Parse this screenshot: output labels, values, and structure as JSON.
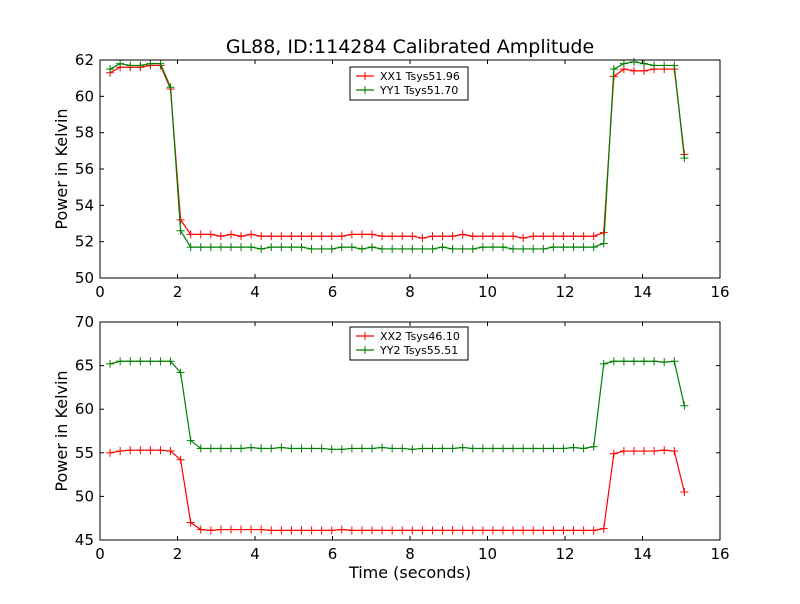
{
  "title": "GL88, ID:114284 Calibrated Amplitude",
  "colors": {
    "red": "#ff0000",
    "green": "#008000"
  },
  "chart_data": [
    {
      "type": "line",
      "xlabel": "",
      "ylabel": "Power in Kelvin",
      "xlim": [
        0,
        16
      ],
      "ylim": [
        50,
        62
      ],
      "xticks": [
        0,
        2,
        4,
        6,
        8,
        10,
        12,
        14,
        16
      ],
      "yticks": [
        50,
        52,
        54,
        56,
        58,
        60,
        62
      ],
      "grid": false,
      "legend_position": "top-center",
      "x": [
        0.26,
        0.52,
        0.78,
        1.04,
        1.3,
        1.56,
        1.82,
        2.08,
        2.34,
        2.6,
        2.86,
        3.12,
        3.38,
        3.64,
        3.9,
        4.16,
        4.42,
        4.68,
        4.94,
        5.2,
        5.46,
        5.72,
        5.98,
        6.24,
        6.5,
        6.76,
        7.02,
        7.28,
        7.54,
        7.8,
        8.06,
        8.32,
        8.58,
        8.84,
        9.1,
        9.36,
        9.62,
        9.88,
        10.14,
        10.4,
        10.66,
        10.92,
        11.18,
        11.44,
        11.7,
        11.96,
        12.22,
        12.48,
        12.74,
        13.0,
        13.26,
        13.52,
        13.78,
        14.04,
        14.3,
        14.56,
        14.82,
        15.08
      ],
      "series": [
        {
          "name": "XX1 Tsys51.96",
          "color": "#ff0000",
          "values": [
            61.3,
            61.6,
            61.6,
            61.6,
            61.7,
            61.7,
            60.4,
            53.2,
            52.4,
            52.4,
            52.4,
            52.3,
            52.4,
            52.3,
            52.4,
            52.3,
            52.3,
            52.3,
            52.3,
            52.3,
            52.3,
            52.3,
            52.3,
            52.3,
            52.4,
            52.4,
            52.4,
            52.3,
            52.3,
            52.3,
            52.3,
            52.2,
            52.3,
            52.3,
            52.3,
            52.4,
            52.3,
            52.3,
            52.3,
            52.3,
            52.3,
            52.2,
            52.3,
            52.3,
            52.3,
            52.3,
            52.3,
            52.3,
            52.3,
            52.5,
            61.1,
            61.5,
            61.4,
            61.4,
            61.5,
            61.5,
            61.5,
            56.8
          ]
        },
        {
          "name": "YY1 Tsys51.70",
          "color": "#008000",
          "values": [
            61.5,
            61.8,
            61.7,
            61.7,
            61.8,
            61.8,
            60.5,
            52.6,
            51.7,
            51.7,
            51.7,
            51.7,
            51.7,
            51.7,
            51.7,
            51.6,
            51.7,
            51.7,
            51.7,
            51.7,
            51.6,
            51.6,
            51.6,
            51.7,
            51.7,
            51.6,
            51.7,
            51.6,
            51.6,
            51.6,
            51.6,
            51.6,
            51.6,
            51.7,
            51.6,
            51.6,
            51.6,
            51.7,
            51.7,
            51.7,
            51.6,
            51.6,
            51.6,
            51.6,
            51.7,
            51.7,
            51.7,
            51.7,
            51.7,
            51.9,
            61.5,
            61.8,
            61.9,
            61.8,
            61.7,
            61.7,
            61.7,
            56.6
          ]
        }
      ]
    },
    {
      "type": "line",
      "xlabel": "Time (seconds)",
      "ylabel": "Power in Kelvin",
      "xlim": [
        0,
        16
      ],
      "ylim": [
        45,
        70
      ],
      "xticks": [
        0,
        2,
        4,
        6,
        8,
        10,
        12,
        14,
        16
      ],
      "yticks": [
        45,
        50,
        55,
        60,
        65,
        70
      ],
      "grid": false,
      "legend_position": "top-center",
      "x": [
        0.26,
        0.52,
        0.78,
        1.04,
        1.3,
        1.56,
        1.82,
        2.08,
        2.34,
        2.6,
        2.86,
        3.12,
        3.38,
        3.64,
        3.9,
        4.16,
        4.42,
        4.68,
        4.94,
        5.2,
        5.46,
        5.72,
        5.98,
        6.24,
        6.5,
        6.76,
        7.02,
        7.28,
        7.54,
        7.8,
        8.06,
        8.32,
        8.58,
        8.84,
        9.1,
        9.36,
        9.62,
        9.88,
        10.14,
        10.4,
        10.66,
        10.92,
        11.18,
        11.44,
        11.7,
        11.96,
        12.22,
        12.48,
        12.74,
        13.0,
        13.26,
        13.52,
        13.78,
        14.04,
        14.3,
        14.56,
        14.82,
        15.08
      ],
      "series": [
        {
          "name": "XX2 Tsys46.10",
          "color": "#ff0000",
          "values": [
            55.0,
            55.2,
            55.3,
            55.3,
            55.3,
            55.3,
            55.2,
            54.2,
            47.0,
            46.2,
            46.1,
            46.2,
            46.2,
            46.2,
            46.2,
            46.2,
            46.1,
            46.1,
            46.1,
            46.1,
            46.1,
            46.1,
            46.1,
            46.2,
            46.1,
            46.1,
            46.1,
            46.1,
            46.1,
            46.1,
            46.1,
            46.1,
            46.1,
            46.1,
            46.1,
            46.1,
            46.1,
            46.1,
            46.1,
            46.1,
            46.1,
            46.1,
            46.1,
            46.1,
            46.1,
            46.1,
            46.1,
            46.1,
            46.1,
            46.3,
            54.9,
            55.2,
            55.2,
            55.2,
            55.2,
            55.3,
            55.2,
            50.5
          ]
        },
        {
          "name": "YY2 Tsys55.51",
          "color": "#008000",
          "values": [
            65.2,
            65.5,
            65.5,
            65.5,
            65.5,
            65.5,
            65.5,
            64.2,
            56.4,
            55.5,
            55.5,
            55.5,
            55.5,
            55.5,
            55.6,
            55.5,
            55.5,
            55.6,
            55.5,
            55.5,
            55.5,
            55.5,
            55.4,
            55.4,
            55.5,
            55.5,
            55.5,
            55.6,
            55.5,
            55.5,
            55.4,
            55.5,
            55.5,
            55.5,
            55.5,
            55.6,
            55.5,
            55.5,
            55.5,
            55.5,
            55.5,
            55.5,
            55.5,
            55.5,
            55.5,
            55.5,
            55.6,
            55.5,
            55.7,
            65.2,
            65.5,
            65.5,
            65.5,
            65.5,
            65.5,
            65.4,
            65.5,
            60.4
          ]
        }
      ]
    }
  ]
}
